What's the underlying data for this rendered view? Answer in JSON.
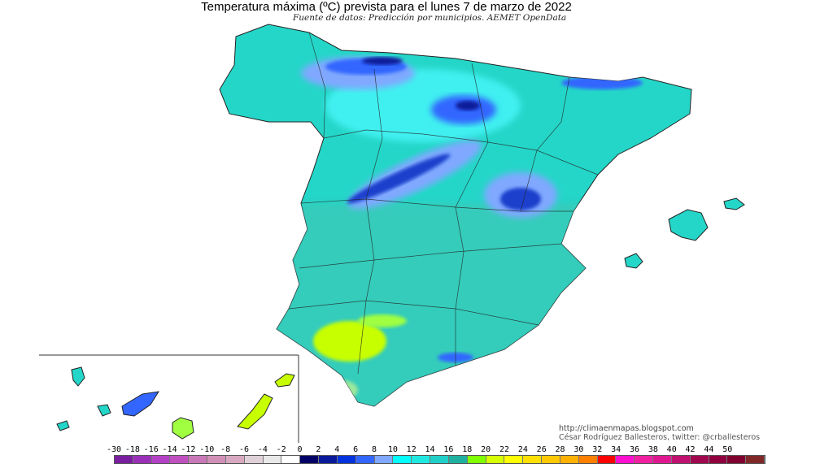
{
  "title": "Temperatura máxima (ºC) prevista para el lunes 7 de marzo de 2022",
  "subtitle": "Fuente de datos: Predicción por municipios. AEMET OpenData",
  "credits": {
    "url": "http://climaenmapas.blogspot.com",
    "author": "César Rodríguez Ballesteros, twitter: @crballesteros"
  },
  "legend": {
    "labels": [
      "-30",
      "-18",
      "-16",
      "-14",
      "-12",
      "-10",
      "-8",
      "-6",
      "-4",
      "-2",
      "0",
      "2",
      "4",
      "6",
      "8",
      "10",
      "12",
      "14",
      "16",
      "18",
      "20",
      "22",
      "24",
      "26",
      "28",
      "30",
      "32",
      "34",
      "36",
      "38",
      "40",
      "42",
      "44",
      "50"
    ],
    "colors": [
      "#7a1ea0",
      "#9b30b8",
      "#b540c8",
      "#c050c0",
      "#c878b8",
      "#d090b8",
      "#d8a8c0",
      "#e0d0d8",
      "#e8e8e8",
      "#ffffff",
      "#000066",
      "#0a1a99",
      "#0033dd",
      "#3366ff",
      "#80a8ff",
      "#00ffff",
      "#20e8e0",
      "#20d0c8",
      "#20b0a0",
      "#80ff00",
      "#d8ff00",
      "#ffff00",
      "#ffe000",
      "#ffc800",
      "#ffb000",
      "#ff8000",
      "#ff0000",
      "#ff10d0",
      "#f020a0",
      "#e01890",
      "#c01070",
      "#a00850",
      "#900040",
      "#800030",
      "#802828"
    ]
  }
}
